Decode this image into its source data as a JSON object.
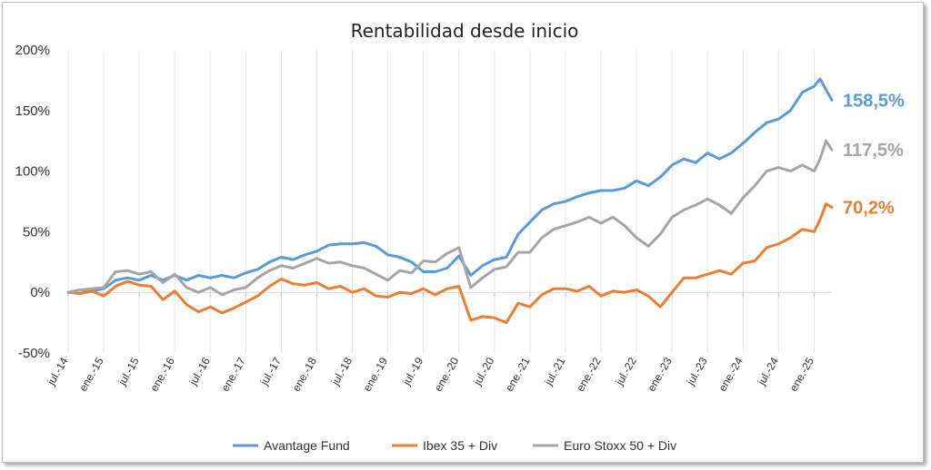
{
  "chart_data": {
    "type": "line",
    "title": "Rentabilidad desde inicio",
    "xlabel": "",
    "ylabel": "",
    "ylim": [
      -50,
      200
    ],
    "y_ticks": [
      "200%",
      "150%",
      "100%",
      "50%",
      "0%",
      "-50%"
    ],
    "y_tick_values": [
      200,
      150,
      100,
      50,
      0,
      -50
    ],
    "x_ticks": [
      "jul.-14",
      "ene.-15",
      "jul.-15",
      "ene.-16",
      "jul.-16",
      "ene.-17",
      "jul.-17",
      "ene.-18",
      "jul.-18",
      "ene.-19",
      "jul.-19",
      "ene.-20",
      "jul.-20",
      "ene.-21",
      "jul.-21",
      "ene.-22",
      "jul.-22",
      "ene.-23",
      "jul.-23",
      "ene.-24",
      "jul.-24",
      "ene.-25"
    ],
    "x_range_months": [
      "2014-07",
      "2025-04"
    ],
    "grid": "vertical-only",
    "legend": "bottom",
    "series": [
      {
        "name": "Avantage Fund",
        "color": "#5b9bd5",
        "end_label": "158,5%",
        "points": [
          [
            "2014-07",
            0
          ],
          [
            "2014-09",
            2
          ],
          [
            "2014-11",
            1
          ],
          [
            "2015-01",
            3
          ],
          [
            "2015-03",
            10
          ],
          [
            "2015-05",
            12
          ],
          [
            "2015-07",
            10
          ],
          [
            "2015-09",
            14
          ],
          [
            "2015-11",
            10
          ],
          [
            "2016-01",
            14
          ],
          [
            "2016-03",
            10
          ],
          [
            "2016-05",
            14
          ],
          [
            "2016-07",
            12
          ],
          [
            "2016-09",
            14
          ],
          [
            "2016-11",
            12
          ],
          [
            "2017-01",
            16
          ],
          [
            "2017-03",
            19
          ],
          [
            "2017-05",
            25
          ],
          [
            "2017-07",
            29
          ],
          [
            "2017-09",
            27
          ],
          [
            "2017-11",
            31
          ],
          [
            "2018-01",
            34
          ],
          [
            "2018-03",
            39
          ],
          [
            "2018-05",
            40
          ],
          [
            "2018-07",
            40
          ],
          [
            "2018-09",
            41
          ],
          [
            "2018-11",
            38
          ],
          [
            "2019-01",
            31
          ],
          [
            "2019-03",
            29
          ],
          [
            "2019-05",
            25
          ],
          [
            "2019-07",
            17
          ],
          [
            "2019-09",
            17
          ],
          [
            "2019-11",
            20
          ],
          [
            "2020-01",
            30
          ],
          [
            "2020-03",
            14
          ],
          [
            "2020-05",
            22
          ],
          [
            "2020-07",
            27
          ],
          [
            "2020-09",
            29
          ],
          [
            "2020-11",
            48
          ],
          [
            "2021-01",
            58
          ],
          [
            "2021-03",
            68
          ],
          [
            "2021-05",
            73
          ],
          [
            "2021-07",
            75
          ],
          [
            "2021-09",
            79
          ],
          [
            "2021-11",
            82
          ],
          [
            "2022-01",
            84
          ],
          [
            "2022-03",
            84
          ],
          [
            "2022-05",
            86
          ],
          [
            "2022-07",
            92
          ],
          [
            "2022-09",
            88
          ],
          [
            "2022-11",
            95
          ],
          [
            "2023-01",
            105
          ],
          [
            "2023-03",
            110
          ],
          [
            "2023-05",
            107
          ],
          [
            "2023-07",
            115
          ],
          [
            "2023-09",
            110
          ],
          [
            "2023-11",
            115
          ],
          [
            "2024-01",
            123
          ],
          [
            "2024-03",
            132
          ],
          [
            "2024-05",
            140
          ],
          [
            "2024-07",
            143
          ],
          [
            "2024-09",
            150
          ],
          [
            "2024-11",
            165
          ],
          [
            "2025-01",
            170
          ],
          [
            "2025-02",
            176
          ],
          [
            "2025-04",
            158.5
          ]
        ]
      },
      {
        "name": "Ibex 35 + Div",
        "color": "#ed7d31",
        "end_label": "70,2%",
        "points": [
          [
            "2014-07",
            0
          ],
          [
            "2014-09",
            -1
          ],
          [
            "2014-11",
            1
          ],
          [
            "2015-01",
            -3
          ],
          [
            "2015-03",
            5
          ],
          [
            "2015-05",
            9
          ],
          [
            "2015-07",
            6
          ],
          [
            "2015-09",
            5
          ],
          [
            "2015-11",
            -6
          ],
          [
            "2016-01",
            1
          ],
          [
            "2016-03",
            -10
          ],
          [
            "2016-05",
            -16
          ],
          [
            "2016-07",
            -12
          ],
          [
            "2016-09",
            -17
          ],
          [
            "2016-11",
            -13
          ],
          [
            "2017-01",
            -8
          ],
          [
            "2017-03",
            -3
          ],
          [
            "2017-05",
            5
          ],
          [
            "2017-07",
            11
          ],
          [
            "2017-09",
            7
          ],
          [
            "2017-11",
            6
          ],
          [
            "2018-01",
            8
          ],
          [
            "2018-03",
            3
          ],
          [
            "2018-05",
            5
          ],
          [
            "2018-07",
            0
          ],
          [
            "2018-09",
            3
          ],
          [
            "2018-11",
            -3
          ],
          [
            "2019-01",
            -4
          ],
          [
            "2019-03",
            0
          ],
          [
            "2019-05",
            -1
          ],
          [
            "2019-07",
            3
          ],
          [
            "2019-09",
            -2
          ],
          [
            "2019-11",
            3
          ],
          [
            "2020-01",
            5
          ],
          [
            "2020-03",
            -23
          ],
          [
            "2020-05",
            -20
          ],
          [
            "2020-07",
            -21
          ],
          [
            "2020-09",
            -25
          ],
          [
            "2020-11",
            -9
          ],
          [
            "2021-01",
            -12
          ],
          [
            "2021-03",
            -2
          ],
          [
            "2021-05",
            3
          ],
          [
            "2021-07",
            3
          ],
          [
            "2021-09",
            1
          ],
          [
            "2021-11",
            5
          ],
          [
            "2022-01",
            -3
          ],
          [
            "2022-03",
            1
          ],
          [
            "2022-05",
            0
          ],
          [
            "2022-07",
            2
          ],
          [
            "2022-09",
            -3
          ],
          [
            "2022-11",
            -12
          ],
          [
            "2023-01",
            0
          ],
          [
            "2023-03",
            12
          ],
          [
            "2023-05",
            12
          ],
          [
            "2023-07",
            15
          ],
          [
            "2023-09",
            18
          ],
          [
            "2023-11",
            15
          ],
          [
            "2024-01",
            24
          ],
          [
            "2024-03",
            26
          ],
          [
            "2024-05",
            37
          ],
          [
            "2024-07",
            40
          ],
          [
            "2024-09",
            45
          ],
          [
            "2024-11",
            52
          ],
          [
            "2025-01",
            50
          ],
          [
            "2025-02",
            60
          ],
          [
            "2025-03",
            73
          ],
          [
            "2025-04",
            70.2
          ]
        ]
      },
      {
        "name": "Euro Stoxx 50 + Div",
        "color": "#a5a5a5",
        "end_label": "117,5%",
        "points": [
          [
            "2014-07",
            0
          ],
          [
            "2014-09",
            2
          ],
          [
            "2014-11",
            3
          ],
          [
            "2015-01",
            4
          ],
          [
            "2015-03",
            17
          ],
          [
            "2015-05",
            18
          ],
          [
            "2015-07",
            15
          ],
          [
            "2015-09",
            17
          ],
          [
            "2015-11",
            8
          ],
          [
            "2016-01",
            15
          ],
          [
            "2016-03",
            4
          ],
          [
            "2016-05",
            0
          ],
          [
            "2016-07",
            4
          ],
          [
            "2016-09",
            -2
          ],
          [
            "2016-11",
            2
          ],
          [
            "2017-01",
            4
          ],
          [
            "2017-03",
            12
          ],
          [
            "2017-05",
            18
          ],
          [
            "2017-07",
            22
          ],
          [
            "2017-09",
            20
          ],
          [
            "2017-11",
            24
          ],
          [
            "2018-01",
            28
          ],
          [
            "2018-03",
            24
          ],
          [
            "2018-05",
            25
          ],
          [
            "2018-07",
            22
          ],
          [
            "2018-09",
            20
          ],
          [
            "2018-11",
            15
          ],
          [
            "2019-01",
            10
          ],
          [
            "2019-03",
            18
          ],
          [
            "2019-05",
            16
          ],
          [
            "2019-07",
            26
          ],
          [
            "2019-09",
            25
          ],
          [
            "2019-11",
            32
          ],
          [
            "2020-01",
            37
          ],
          [
            "2020-03",
            4
          ],
          [
            "2020-05",
            12
          ],
          [
            "2020-07",
            19
          ],
          [
            "2020-09",
            21
          ],
          [
            "2020-11",
            33
          ],
          [
            "2021-01",
            33
          ],
          [
            "2021-03",
            45
          ],
          [
            "2021-05",
            52
          ],
          [
            "2021-07",
            55
          ],
          [
            "2021-09",
            58
          ],
          [
            "2021-11",
            62
          ],
          [
            "2022-01",
            57
          ],
          [
            "2022-03",
            62
          ],
          [
            "2022-05",
            55
          ],
          [
            "2022-07",
            45
          ],
          [
            "2022-09",
            38
          ],
          [
            "2022-11",
            48
          ],
          [
            "2023-01",
            62
          ],
          [
            "2023-03",
            68
          ],
          [
            "2023-05",
            72
          ],
          [
            "2023-07",
            77
          ],
          [
            "2023-09",
            72
          ],
          [
            "2023-11",
            65
          ],
          [
            "2024-01",
            78
          ],
          [
            "2024-03",
            88
          ],
          [
            "2024-05",
            100
          ],
          [
            "2024-07",
            103
          ],
          [
            "2024-09",
            100
          ],
          [
            "2024-11",
            105
          ],
          [
            "2025-01",
            100
          ],
          [
            "2025-02",
            110
          ],
          [
            "2025-03",
            125
          ],
          [
            "2025-04",
            117.5
          ]
        ]
      }
    ]
  }
}
